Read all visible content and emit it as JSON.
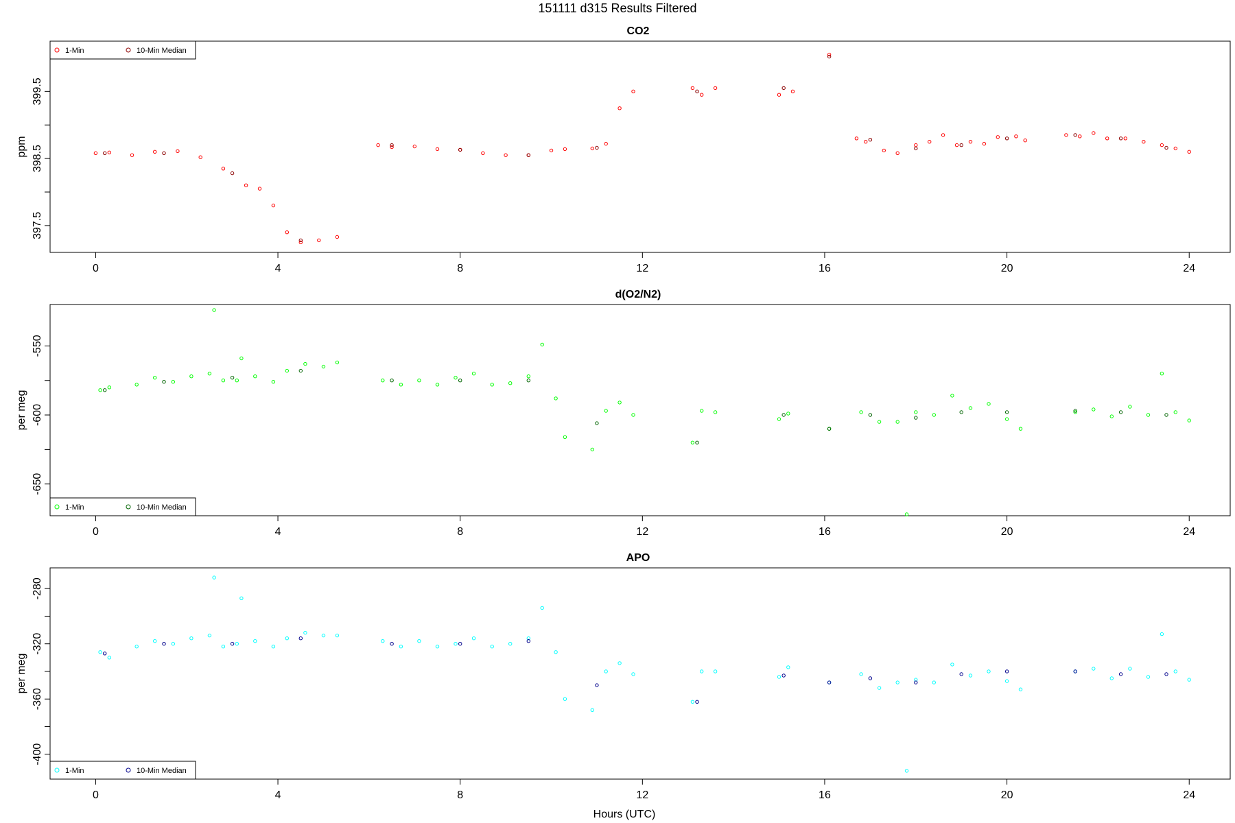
{
  "page_title": "151111   d315   Results Filtered",
  "xlabel": "Hours (UTC)",
  "chart_data": [
    {
      "type": "scatter",
      "title": "CO2",
      "ylabel": "ppm",
      "xlim": [
        -1.0,
        24.9
      ],
      "ylim": [
        397.1,
        400.25
      ],
      "x_ticks": [
        0,
        4,
        8,
        12,
        16,
        20,
        24
      ],
      "y_ticks": [
        397.5,
        398.0,
        398.5,
        399.0,
        399.5
      ],
      "y_tick_labels": [
        "397.5",
        "",
        "398.5",
        "",
        "399.5"
      ],
      "legend": {
        "position": "top-left",
        "entries": [
          "1-Min",
          "10-Min Median"
        ]
      },
      "series": [
        {
          "name": "1-Min",
          "color": "#ff0000",
          "x": [
            0.0,
            0.3,
            0.8,
            1.3,
            1.8,
            2.3,
            2.8,
            3.3,
            3.6,
            3.9,
            4.2,
            4.5,
            4.9,
            5.3,
            6.2,
            6.5,
            7.0,
            7.5,
            8.0,
            8.5,
            9.0,
            9.5,
            10.0,
            10.3,
            10.9,
            11.2,
            11.5,
            11.8,
            13.1,
            13.3,
            13.6,
            15.0,
            15.3,
            16.1,
            16.7,
            16.9,
            17.3,
            17.6,
            18.0,
            18.3,
            18.6,
            18.9,
            19.2,
            19.5,
            19.8,
            20.2,
            20.4,
            21.3,
            21.6,
            21.9,
            22.2,
            22.6,
            23.0,
            23.4,
            23.7,
            24.0
          ],
          "y": [
            398.58,
            398.59,
            398.55,
            398.6,
            398.61,
            398.52,
            398.35,
            398.1,
            398.05,
            397.8,
            397.4,
            397.25,
            397.28,
            397.33,
            398.7,
            398.67,
            398.68,
            398.64,
            398.63,
            398.58,
            398.55,
            398.55,
            398.62,
            398.64,
            398.65,
            398.72,
            399.25,
            399.5,
            399.55,
            399.45,
            399.55,
            399.45,
            399.5,
            400.05,
            398.8,
            398.75,
            398.62,
            398.58,
            398.7,
            398.75,
            398.85,
            398.7,
            398.75,
            398.72,
            398.82,
            398.83,
            398.77,
            398.85,
            398.83,
            398.88,
            398.8,
            398.8,
            398.75,
            398.7,
            398.65,
            398.6
          ]
        },
        {
          "name": "10-Min Median",
          "color": "#8b0000",
          "x": [
            0.2,
            1.5,
            3.0,
            4.5,
            6.5,
            8.0,
            9.5,
            11.0,
            13.2,
            15.1,
            16.1,
            17.0,
            18.0,
            19.0,
            20.0,
            21.5,
            22.5,
            23.5
          ],
          "y": [
            398.58,
            398.58,
            398.28,
            397.28,
            398.7,
            398.63,
            398.55,
            398.66,
            399.5,
            399.55,
            400.02,
            398.78,
            398.65,
            398.7,
            398.8,
            398.85,
            398.8,
            398.66
          ]
        }
      ]
    },
    {
      "type": "scatter",
      "title": "d(O2/N2)",
      "ylabel": "per meg",
      "xlim": [
        -1.0,
        24.9
      ],
      "ylim": [
        -673,
        -520
      ],
      "x_ticks": [
        0,
        4,
        8,
        12,
        16,
        20,
        24
      ],
      "y_ticks": [
        -650,
        -625,
        -600,
        -575,
        -550
      ],
      "y_tick_labels": [
        "-650",
        "",
        "-600",
        "",
        "-550"
      ],
      "legend": {
        "position": "bottom-left",
        "entries": [
          "1-Min",
          "10-Min Median"
        ]
      },
      "series": [
        {
          "name": "1-Min",
          "color": "#00ff00",
          "x": [
            0.1,
            0.3,
            0.9,
            1.3,
            1.7,
            2.1,
            2.5,
            2.6,
            2.8,
            3.1,
            3.2,
            3.5,
            3.9,
            4.2,
            4.6,
            5.0,
            5.3,
            6.3,
            6.7,
            7.1,
            7.5,
            7.9,
            8.3,
            8.7,
            9.1,
            9.5,
            9.8,
            10.1,
            10.3,
            10.9,
            11.2,
            11.5,
            11.8,
            13.1,
            13.3,
            13.6,
            15.0,
            15.2,
            16.1,
            16.8,
            17.2,
            17.6,
            17.8,
            18.0,
            18.4,
            18.8,
            19.2,
            19.6,
            20.0,
            20.3,
            21.5,
            21.9,
            22.3,
            22.7,
            23.1,
            23.4,
            23.7,
            24.0
          ],
          "y": [
            -582,
            -580,
            -578,
            -573,
            -576,
            -572,
            -570,
            -524,
            -575,
            -575,
            -559,
            -572,
            -576,
            -568,
            -563,
            -565,
            -562,
            -575,
            -578,
            -575,
            -578,
            -573,
            -570,
            -578,
            -577,
            -572,
            -549,
            -588,
            -616,
            -625,
            -597,
            -591,
            -600,
            -620,
            -597,
            -598,
            -603,
            -599,
            -610,
            -598,
            -605,
            -605,
            -672,
            -598,
            -600,
            -586,
            -595,
            -592,
            -603,
            -610,
            -598,
            -596,
            -601,
            -594,
            -600,
            -570,
            -598,
            -604
          ]
        },
        {
          "name": "10-Min Median",
          "color": "#006400",
          "x": [
            0.2,
            1.5,
            3.0,
            4.5,
            6.5,
            8.0,
            9.5,
            11.0,
            13.2,
            15.1,
            16.1,
            17.0,
            18.0,
            19.0,
            20.0,
            21.5,
            22.5,
            23.5
          ],
          "y": [
            -582,
            -576,
            -573,
            -568,
            -575,
            -575,
            -575,
            -606,
            -620,
            -600,
            -610,
            -600,
            -602,
            -598,
            -598,
            -597,
            -598,
            -600
          ]
        }
      ]
    },
    {
      "type": "scatter",
      "title": "APO",
      "ylabel": "per meg",
      "xlim": [
        -1.0,
        24.9
      ],
      "ylim": [
        -418,
        -265
      ],
      "x_ticks": [
        0,
        4,
        8,
        12,
        16,
        20,
        24
      ],
      "y_ticks": [
        -400,
        -380,
        -360,
        -340,
        -320,
        -300,
        -280
      ],
      "y_tick_labels": [
        "-400",
        "",
        "-360",
        "",
        "-320",
        "",
        "-280"
      ],
      "legend": {
        "position": "bottom-left",
        "entries": [
          "1-Min",
          "10-Min Median"
        ]
      },
      "series": [
        {
          "name": "1-Min",
          "color": "#00ffff",
          "x": [
            0.1,
            0.3,
            0.9,
            1.3,
            1.7,
            2.1,
            2.5,
            2.6,
            2.8,
            3.1,
            3.2,
            3.5,
            3.9,
            4.2,
            4.6,
            5.0,
            5.3,
            6.3,
            6.7,
            7.1,
            7.5,
            7.9,
            8.3,
            8.7,
            9.1,
            9.5,
            9.8,
            10.1,
            10.3,
            10.9,
            11.2,
            11.5,
            11.8,
            13.1,
            13.3,
            13.6,
            15.0,
            15.2,
            16.1,
            16.8,
            17.2,
            17.6,
            17.8,
            18.0,
            18.4,
            18.8,
            19.2,
            19.6,
            20.0,
            20.3,
            21.5,
            21.9,
            22.3,
            22.7,
            23.1,
            23.4,
            23.7,
            24.0
          ],
          "y": [
            -326,
            -330,
            -322,
            -318,
            -320,
            -316,
            -314,
            -272,
            -322,
            -320,
            -287,
            -318,
            -322,
            -316,
            -312,
            -314,
            -314,
            -318,
            -322,
            -318,
            -322,
            -320,
            -316,
            -322,
            -320,
            -316,
            -294,
            -326,
            -360,
            -368,
            -340,
            -334,
            -342,
            -362,
            -340,
            -340,
            -344,
            -337,
            -348,
            -342,
            -352,
            -348,
            -412,
            -346,
            -348,
            -335,
            -343,
            -340,
            -347,
            -353,
            -340,
            -338,
            -345,
            -338,
            -344,
            -313,
            -340,
            -346
          ]
        },
        {
          "name": "10-Min Median",
          "color": "#00008b",
          "x": [
            0.2,
            1.5,
            3.0,
            4.5,
            6.5,
            8.0,
            9.5,
            11.0,
            13.2,
            15.1,
            16.1,
            17.0,
            18.0,
            19.0,
            20.0,
            21.5,
            22.5,
            23.5
          ],
          "y": [
            -327,
            -320,
            -320,
            -316,
            -320,
            -320,
            -318,
            -350,
            -362,
            -343,
            -348,
            -345,
            -348,
            -342,
            -340,
            -340,
            -342,
            -342
          ]
        }
      ]
    }
  ]
}
